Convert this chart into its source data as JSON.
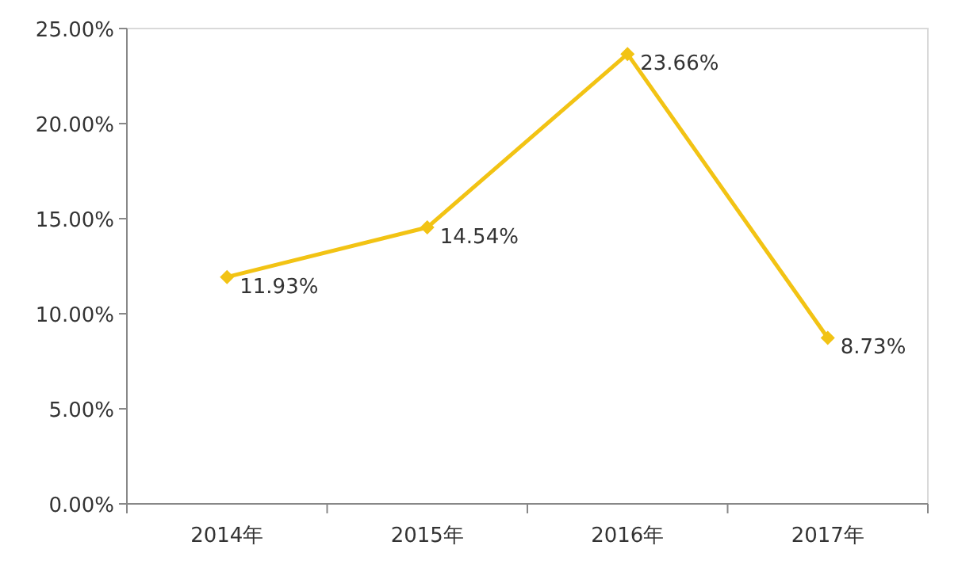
{
  "chart_data": {
    "type": "line",
    "categories": [
      "2014年",
      "2015年",
      "2016年",
      "2017年"
    ],
    "series": [
      {
        "color": "#f2c314",
        "values": [
          11.93,
          14.54,
          23.66,
          8.73
        ],
        "value_labels": [
          "11.93%",
          "14.54%",
          "23.66%",
          "8.73%"
        ]
      }
    ],
    "ylim": [
      0,
      25
    ],
    "yticks": [
      {
        "value": 0,
        "label": "0.00%"
      },
      {
        "value": 5,
        "label": "5.00%"
      },
      {
        "value": 10,
        "label": "10.00%"
      },
      {
        "value": 15,
        "label": "15.00%"
      },
      {
        "value": 20,
        "label": "20.00%"
      },
      {
        "value": 25,
        "label": "25.00%"
      }
    ],
    "marker": "diamond",
    "line_style": "solid",
    "grid": false
  }
}
